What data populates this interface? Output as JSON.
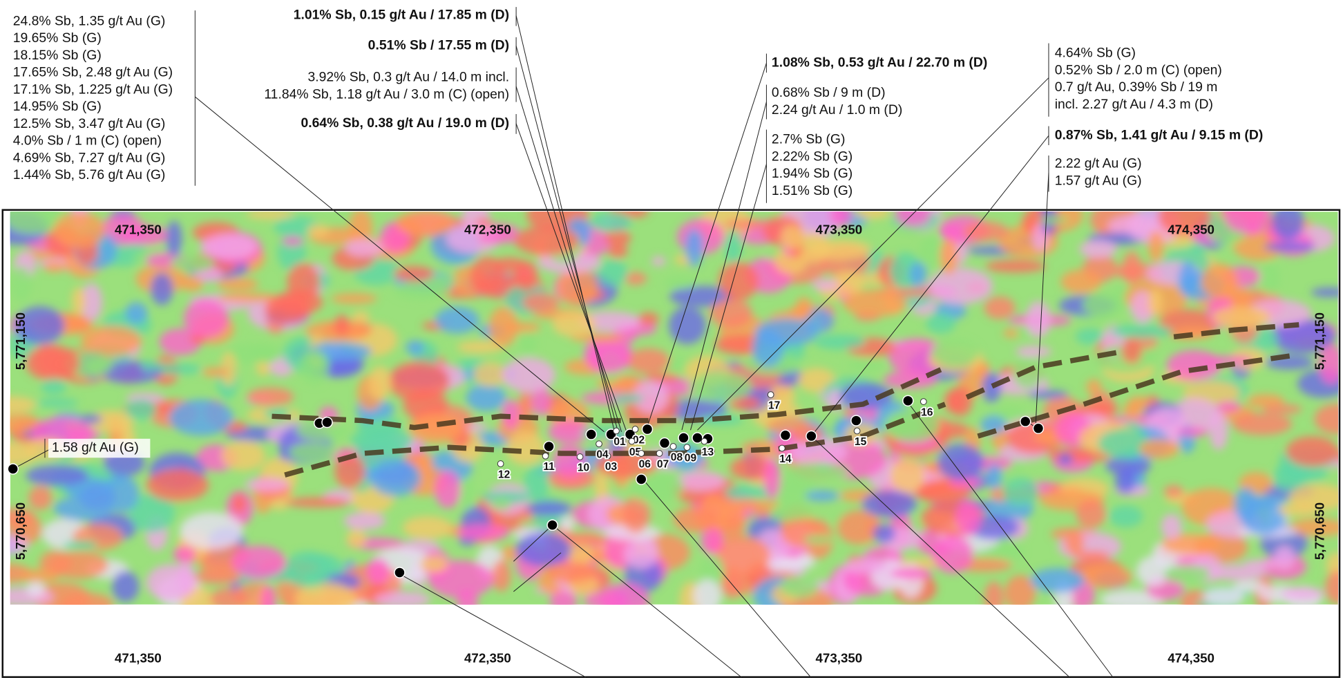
{
  "annotations": [
    {
      "bold": false,
      "lines": [
        "24.8% Sb, 1.35 g/t Au  (G)",
        "19.65% Sb (G)",
        "18.15% Sb (G)",
        "17.65% Sb, 2.48 g/t Au (G)",
        "17.1% Sb, 1.225 g/t Au (G)",
        "14.95% Sb (G)",
        "12.5% Sb, 3.47 g/t Au (G)",
        "4.0% Sb / 1 m (C) (open)",
        "4.69% Sb, 7.27 g/t Au (G)",
        "1.44% Sb, 5.76 g/t Au (G)"
      ]
    },
    {
      "bold": true,
      "lines": [
        "1.01% Sb, 0.15 g/t Au / 17.85 m (D)"
      ]
    },
    {
      "bold": true,
      "lines": [
        "0.51% Sb / 17.55 m (D)"
      ]
    },
    {
      "bold": false,
      "lines": [
        "3.92% Sb, 0.3 g/t Au / 14.0 m incl.",
        "11.84% Sb, 1.18 g/t Au / 3.0 m (C) (open)"
      ]
    },
    {
      "bold": true,
      "lines": [
        "0.64% Sb, 0.38 g/t Au / 19.0 m (D)"
      ]
    },
    {
      "bold": true,
      "lines": [
        "1.08% Sb, 0.53 g/t Au / 22.70 m (D)"
      ]
    },
    {
      "bold": false,
      "lines": [
        "0.68% Sb / 9 m (D)",
        "2.24 g/t Au / 1.0 m (D)"
      ]
    },
    {
      "bold": false,
      "lines": [
        "2.7% Sb (G)",
        "2.22% Sb (G)",
        "1.94% Sb (G)",
        "1.51% Sb (G)"
      ]
    },
    {
      "bold": false,
      "lines": [
        "4.64% Sb (G)",
        "0.52% Sb / 2.0 m (C) (open)",
        "0.7 g/t Au, 0.39% Sb / 19 m",
        "incl. 2.27 g/t Au / 4.3 m (D)"
      ]
    },
    {
      "bold": true,
      "lines": [
        "0.87% Sb, 1.41 g/t Au / 9.15 m (D)"
      ]
    },
    {
      "bold": false,
      "lines": [
        "2.22 g/t Au (G)",
        "1.57 g/t Au (G)"
      ]
    },
    {
      "bold": false,
      "lines": [
        "1.58 g/t Au (G)"
      ]
    }
  ],
  "map": {
    "easting_labels": [
      "471,350",
      "472,350",
      "473,350",
      "474,350"
    ],
    "northing_labels": [
      "5,771,150",
      "5,770,650"
    ],
    "drill_holes": [
      "01",
      "02",
      "03",
      "04",
      "05",
      "06",
      "07",
      "08",
      "09",
      "10",
      "11",
      "12",
      "13",
      "14",
      "15",
      "16",
      "17"
    ]
  }
}
